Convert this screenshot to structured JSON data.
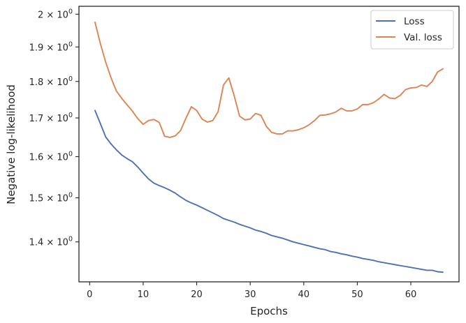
{
  "chart_data": {
    "type": "line",
    "xlabel": "Epochs",
    "ylabel": "Negative log-likelihood",
    "xscale": "linear",
    "yscale": "log",
    "xlim": [
      -2,
      69
    ],
    "ylim": [
      1.315,
      2.025
    ],
    "x_ticks": [
      0,
      10,
      20,
      30,
      40,
      50,
      60
    ],
    "y_ticks": [
      {
        "value": 1.4,
        "mantissa": "1.4"
      },
      {
        "value": 1.5,
        "mantissa": "1.5"
      },
      {
        "value": 1.6,
        "mantissa": "1.6"
      },
      {
        "value": 1.7,
        "mantissa": "1.7"
      },
      {
        "value": 1.8,
        "mantissa": "1.8"
      },
      {
        "value": 1.9,
        "mantissa": "1.9"
      },
      {
        "value": 2.0,
        "mantissa": "2"
      }
    ],
    "tick_base": "10",
    "tick_exponent": "0",
    "grid": false,
    "legend_position": "top-right",
    "series": [
      {
        "name": "Loss",
        "color": "#4c72b0",
        "x": [
          1,
          2,
          3,
          4,
          5,
          6,
          7,
          8,
          9,
          10,
          11,
          12,
          13,
          14,
          15,
          16,
          17,
          18,
          19,
          20,
          21,
          22,
          23,
          24,
          25,
          26,
          27,
          28,
          29,
          30,
          31,
          32,
          33,
          34,
          35,
          36,
          37,
          38,
          39,
          40,
          41,
          42,
          43,
          44,
          45,
          46,
          47,
          48,
          49,
          50,
          51,
          52,
          53,
          54,
          55,
          56,
          57,
          58,
          59,
          60,
          61,
          62,
          63,
          64,
          65,
          66
        ],
        "values": [
          1.72,
          1.685,
          1.65,
          1.632,
          1.617,
          1.604,
          1.595,
          1.587,
          1.574,
          1.559,
          1.545,
          1.535,
          1.529,
          1.524,
          1.518,
          1.511,
          1.502,
          1.494,
          1.488,
          1.483,
          1.477,
          1.471,
          1.465,
          1.459,
          1.452,
          1.448,
          1.444,
          1.439,
          1.435,
          1.431,
          1.426,
          1.423,
          1.419,
          1.414,
          1.411,
          1.408,
          1.404,
          1.4,
          1.397,
          1.394,
          1.391,
          1.388,
          1.385,
          1.383,
          1.379,
          1.377,
          1.374,
          1.372,
          1.369,
          1.367,
          1.364,
          1.362,
          1.36,
          1.357,
          1.355,
          1.353,
          1.351,
          1.349,
          1.347,
          1.345,
          1.343,
          1.341,
          1.339,
          1.339,
          1.336,
          1.335
        ]
      },
      {
        "name": "Val. loss",
        "color": "#dd8452",
        "x": [
          1,
          2,
          3,
          4,
          5,
          6,
          7,
          8,
          9,
          10,
          11,
          12,
          13,
          14,
          15,
          16,
          17,
          18,
          19,
          20,
          21,
          22,
          23,
          24,
          25,
          26,
          27,
          28,
          29,
          30,
          31,
          32,
          33,
          34,
          35,
          36,
          37,
          38,
          39,
          40,
          41,
          42,
          43,
          44,
          45,
          46,
          47,
          48,
          49,
          50,
          51,
          52,
          53,
          54,
          55,
          56,
          57,
          58,
          59,
          60,
          61,
          62,
          63,
          64,
          65,
          66
        ],
        "values": [
          1.975,
          1.91,
          1.855,
          1.81,
          1.773,
          1.753,
          1.735,
          1.718,
          1.698,
          1.683,
          1.693,
          1.696,
          1.688,
          1.652,
          1.649,
          1.653,
          1.667,
          1.7,
          1.73,
          1.72,
          1.697,
          1.689,
          1.693,
          1.717,
          1.79,
          1.81,
          1.76,
          1.705,
          1.695,
          1.697,
          1.712,
          1.707,
          1.678,
          1.662,
          1.658,
          1.658,
          1.666,
          1.666,
          1.669,
          1.674,
          1.682,
          1.693,
          1.707,
          1.708,
          1.711,
          1.716,
          1.726,
          1.719,
          1.719,
          1.724,
          1.736,
          1.736,
          1.741,
          1.751,
          1.764,
          1.754,
          1.752,
          1.761,
          1.777,
          1.782,
          1.783,
          1.79,
          1.786,
          1.8,
          1.827,
          1.836
        ]
      }
    ]
  }
}
